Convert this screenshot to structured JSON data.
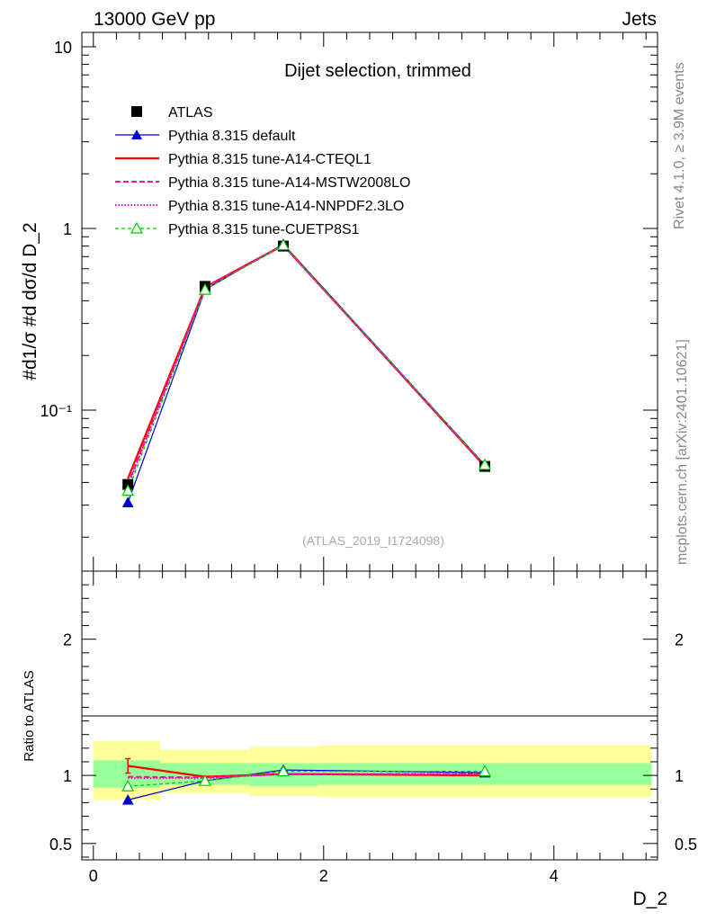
{
  "header": {
    "left": "13000 GeV pp",
    "right": "Jets"
  },
  "side": {
    "rivet": "Rivet 4.1.0, ≥ 3.9M events",
    "mcplots": "mcplots.cern.ch [arXiv:2401.10621]"
  },
  "colors": {
    "band_inner": "#99ff99",
    "band_outer": "#ffff99"
  },
  "chart_data": [
    {
      "type": "line",
      "title": "Dijet selection, trimmed",
      "watermark": "(ATLAS_2019_I1724098)",
      "ylabel": "#d1/σ #d dσ/d D_2",
      "yscale": "log",
      "ylim": [
        0.013,
        12
      ],
      "xlim": [
        -0.1,
        4.9
      ],
      "ytick_labels": {
        "t001": "10⁻¹",
        "t1": "1",
        "t10": "10"
      },
      "x": [
        0.3,
        0.97,
        1.65,
        3.4
      ],
      "series": [
        {
          "name": "ATLAS",
          "color": "#000000",
          "marker": "square",
          "values": [
            0.039,
            0.48,
            0.8,
            0.049
          ]
        },
        {
          "name": "Pythia 8.315 default",
          "color": "#0000cc",
          "marker": "triangle",
          "values": [
            0.031,
            0.46,
            0.82,
            0.05
          ]
        },
        {
          "name": "Pythia 8.315 tune-A14-CTEQL1",
          "color": "#ff0000",
          "values": [
            0.042,
            0.475,
            0.81,
            0.049
          ]
        },
        {
          "name": "Pythia 8.315 tune-A14-MSTW2008LO",
          "color": "#ff1493",
          "values": [
            0.039,
            0.472,
            0.805,
            0.0495
          ]
        },
        {
          "name": "Pythia 8.315 tune-A14-NNPDF2.3LO",
          "color": "#e600b8",
          "values": [
            0.038,
            0.47,
            0.805,
            0.0495
          ]
        },
        {
          "name": "Pythia 8.315 tune-CUETP8S1",
          "color": "#00cc00",
          "marker": "open-triangle",
          "values": [
            0.036,
            0.46,
            0.81,
            0.05
          ]
        }
      ]
    },
    {
      "type": "line",
      "ylabel": "Ratio to ATLAS",
      "xlabel": "D_2",
      "ylim": [
        0.38,
        2.5
      ],
      "xlim": [
        -0.1,
        4.9
      ],
      "yticks": [
        0.5,
        1,
        2
      ],
      "ytick_labels": [
        "0.5",
        "1",
        "2"
      ],
      "xticks": [
        0,
        2,
        4
      ],
      "xtick_labels": [
        "0",
        "2",
        "4"
      ],
      "bins": [
        [
          0.0,
          0.58
        ],
        [
          0.58,
          1.36
        ],
        [
          1.36,
          1.95
        ],
        [
          1.95,
          4.85
        ]
      ],
      "band_inner": [
        [
          0.91,
          1.11
        ],
        [
          0.93,
          1.09
        ],
        [
          0.92,
          1.09
        ],
        [
          0.93,
          1.09
        ]
      ],
      "band_outer": [
        [
          0.82,
          1.25
        ],
        [
          0.87,
          1.19
        ],
        [
          0.85,
          1.21
        ],
        [
          0.84,
          1.22
        ]
      ],
      "x": [
        0.3,
        0.97,
        1.65,
        3.4
      ],
      "series": [
        {
          "name": "Pythia 8.315 default",
          "color": "#0000cc",
          "marker": "triangle",
          "values": [
            0.82,
            0.96,
            1.04,
            1.02
          ]
        },
        {
          "name": "Pythia 8.315 tune-A14-CTEQL1",
          "color": "#ff0000",
          "values": [
            1.07,
            0.99,
            1.01,
            1.0
          ]
        },
        {
          "name": "Pythia 8.315 tune-A14-MSTW2008LO",
          "color": "#ff1493",
          "values": [
            0.99,
            0.985,
            1.01,
            1.01
          ]
        },
        {
          "name": "Pythia 8.315 tune-A14-NNPDF2.3LO",
          "color": "#e600b8",
          "values": [
            0.98,
            0.98,
            1.01,
            1.01
          ]
        },
        {
          "name": "Pythia 8.315 tune-CUETP8S1",
          "color": "#00cc00",
          "marker": "open-triangle",
          "values": [
            0.92,
            0.96,
            1.03,
            1.03
          ]
        }
      ]
    }
  ]
}
